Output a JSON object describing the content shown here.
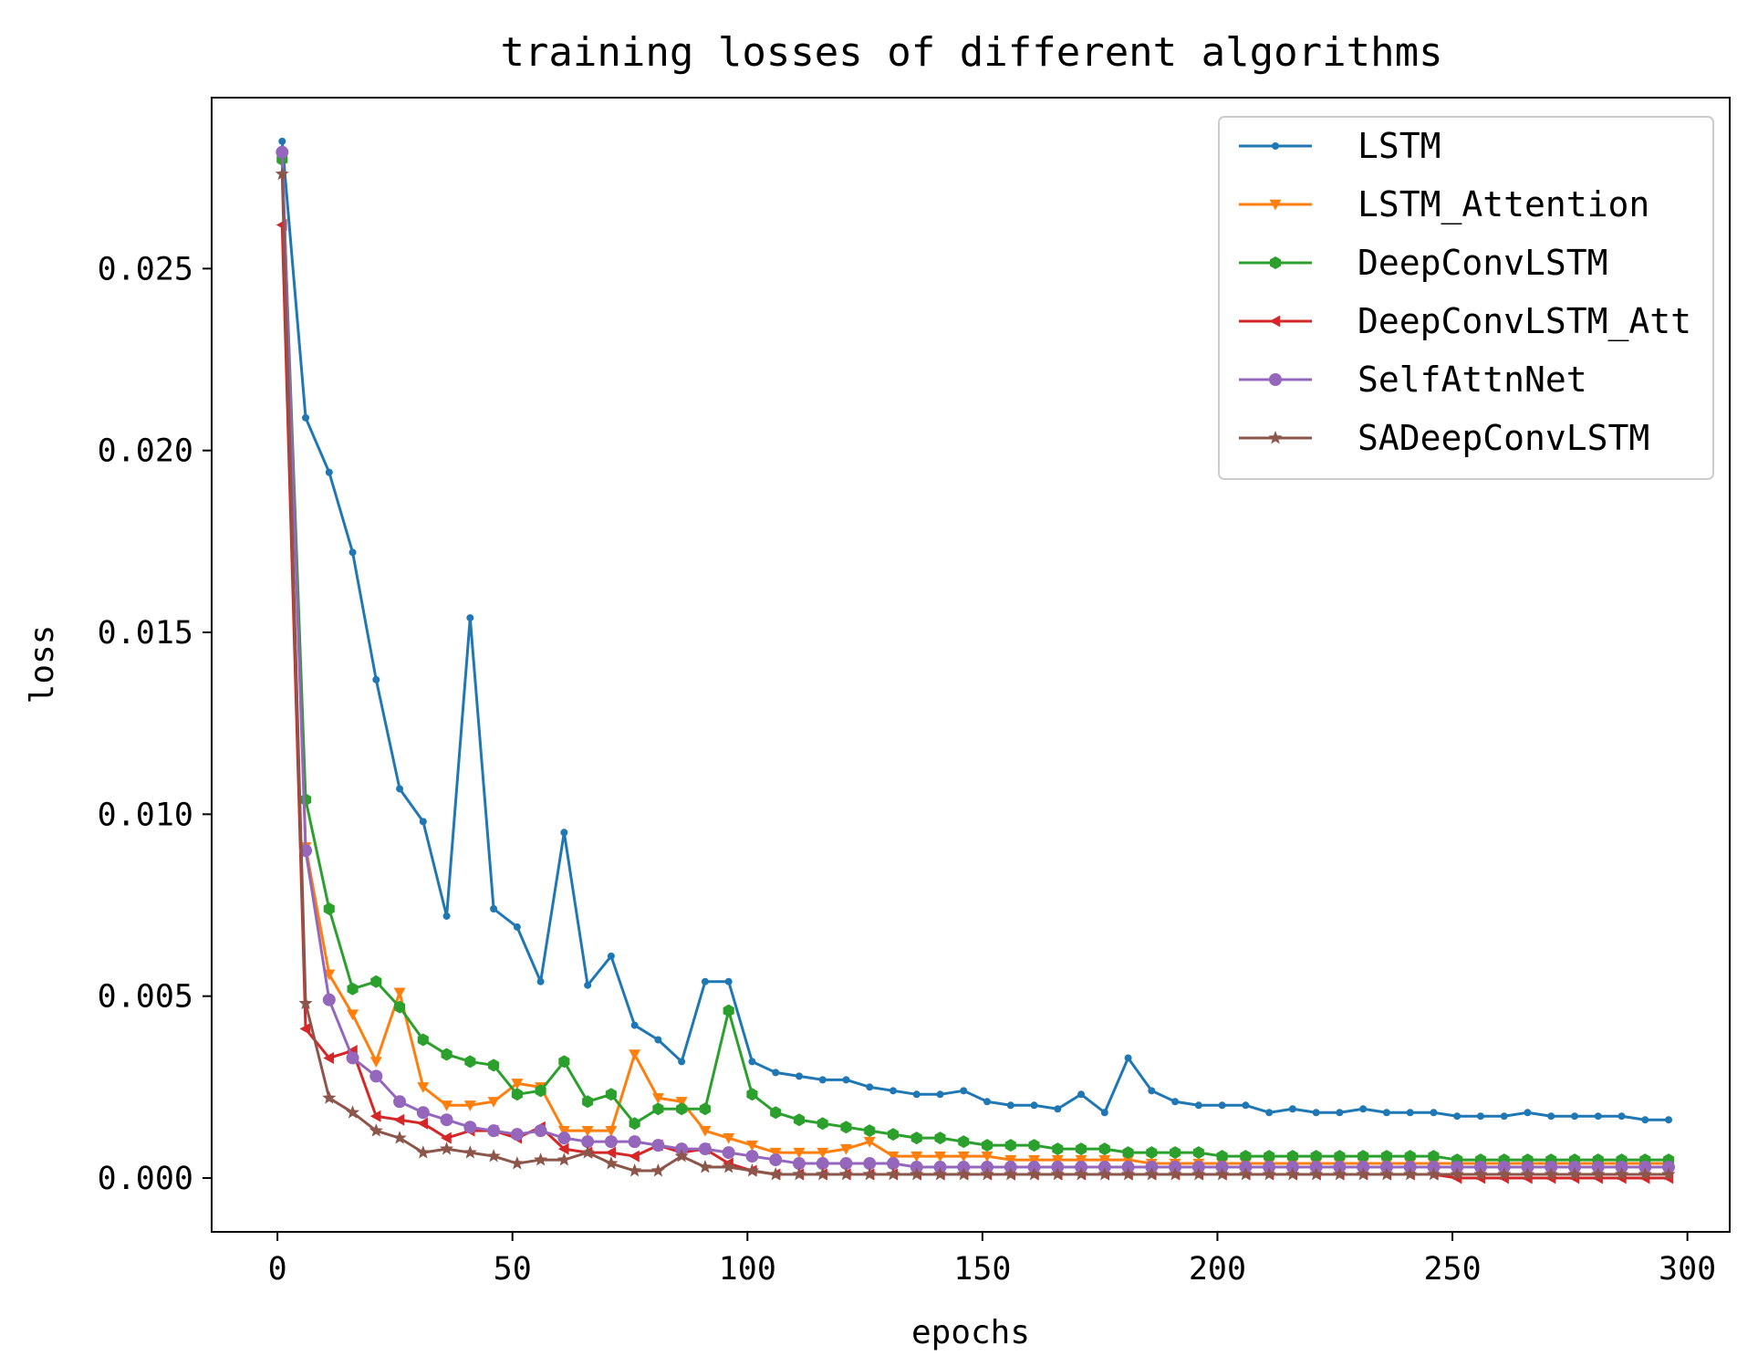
{
  "chart_data": {
    "type": "line",
    "title": "training losses of different algorithms",
    "xlabel": "epochs",
    "ylabel": "loss",
    "xlim": [
      -14,
      309
    ],
    "ylim": [
      -0.00148,
      0.0297
    ],
    "xticks": [
      0,
      50,
      100,
      150,
      200,
      250,
      300
    ],
    "xtick_labels": [
      "0",
      "50",
      "100",
      "150",
      "200",
      "250",
      "300"
    ],
    "yticks": [
      0.0,
      0.005,
      0.01,
      0.015,
      0.02,
      0.025
    ],
    "ytick_labels": [
      "0.000",
      "0.005",
      "0.010",
      "0.015",
      "0.020",
      "0.025"
    ],
    "legend_position": "top-right",
    "grid": false,
    "x": [
      1,
      6,
      11,
      16,
      21,
      26,
      31,
      36,
      41,
      46,
      51,
      56,
      61,
      66,
      71,
      76,
      81,
      86,
      91,
      96,
      101,
      106,
      111,
      116,
      121,
      126,
      131,
      136,
      141,
      146,
      151,
      156,
      161,
      166,
      171,
      176,
      181,
      186,
      191,
      196,
      201,
      206,
      211,
      216,
      221,
      226,
      231,
      236,
      241,
      246,
      251,
      256,
      261,
      266,
      271,
      276,
      281,
      286,
      291,
      296
    ],
    "series": [
      {
        "name": "LSTM",
        "color": "#1f77b4",
        "marker": "point",
        "values": [
          0.0285,
          0.0209,
          0.0194,
          0.0172,
          0.0137,
          0.0107,
          0.0098,
          0.0072,
          0.0154,
          0.0074,
          0.0069,
          0.0054,
          0.0095,
          0.0053,
          0.0061,
          0.0042,
          0.0038,
          0.0032,
          0.0054,
          0.0054,
          0.0032,
          0.0029,
          0.0028,
          0.0027,
          0.0027,
          0.0025,
          0.0024,
          0.0023,
          0.0023,
          0.0024,
          0.0021,
          0.002,
          0.002,
          0.0019,
          0.0023,
          0.0018,
          0.0033,
          0.0024,
          0.0021,
          0.002,
          0.002,
          0.002,
          0.0018,
          0.0019,
          0.0018,
          0.0018,
          0.0019,
          0.0018,
          0.0018,
          0.0018,
          0.0017,
          0.0017,
          0.0017,
          0.0018,
          0.0017,
          0.0017,
          0.0017,
          0.0017,
          0.0016,
          0.0016
        ]
      },
      {
        "name": "LSTM_Attention",
        "color": "#ff7f0e",
        "marker": "triangle_down",
        "values": [
          0.0281,
          0.0091,
          0.0056,
          0.0045,
          0.0032,
          0.0051,
          0.0025,
          0.002,
          0.002,
          0.0021,
          0.0026,
          0.0025,
          0.0013,
          0.0013,
          0.0013,
          0.0034,
          0.0022,
          0.0021,
          0.0013,
          0.0011,
          0.0009,
          0.0007,
          0.0007,
          0.0007,
          0.0008,
          0.001,
          0.0006,
          0.0006,
          0.0006,
          0.0006,
          0.0006,
          0.0005,
          0.0005,
          0.0005,
          0.0005,
          0.0005,
          0.0005,
          0.0004,
          0.0004,
          0.0004,
          0.0004,
          0.0004,
          0.0004,
          0.0004,
          0.0004,
          0.0004,
          0.0004,
          0.0004,
          0.0004,
          0.0004,
          0.0004,
          0.0004,
          0.0004,
          0.0004,
          0.0004,
          0.0004,
          0.0004,
          0.0004,
          0.0004,
          0.0004
        ]
      },
      {
        "name": "DeepConvLSTM",
        "color": "#2ca02c",
        "marker": "hexagon",
        "values": [
          0.028,
          0.0104,
          0.0074,
          0.0052,
          0.0054,
          0.0047,
          0.0038,
          0.0034,
          0.0032,
          0.0031,
          0.0023,
          0.0024,
          0.0032,
          0.0021,
          0.0023,
          0.0015,
          0.0019,
          0.0019,
          0.0019,
          0.0046,
          0.0023,
          0.0018,
          0.0016,
          0.0015,
          0.0014,
          0.0013,
          0.0012,
          0.0011,
          0.0011,
          0.001,
          0.0009,
          0.0009,
          0.0009,
          0.0008,
          0.0008,
          0.0008,
          0.0007,
          0.0007,
          0.0007,
          0.0007,
          0.0006,
          0.0006,
          0.0006,
          0.0006,
          0.0006,
          0.0006,
          0.0006,
          0.0006,
          0.0006,
          0.0006,
          0.0005,
          0.0005,
          0.0005,
          0.0005,
          0.0005,
          0.0005,
          0.0005,
          0.0005,
          0.0005,
          0.0005
        ]
      },
      {
        "name": "DeepConvLSTM_Att",
        "color": "#d62728",
        "marker": "triangle_left",
        "values": [
          0.0262,
          0.0041,
          0.0033,
          0.0035,
          0.0017,
          0.0016,
          0.0015,
          0.0011,
          0.0013,
          0.0013,
          0.0011,
          0.0014,
          0.0008,
          0.0007,
          0.0007,
          0.0006,
          0.0009,
          0.0007,
          0.0008,
          0.0004,
          0.0002,
          0.0001,
          0.0001,
          0.0001,
          0.0001,
          0.0001,
          0.0001,
          0.0001,
          0.0001,
          0.0001,
          0.0001,
          0.0001,
          0.0001,
          0.0001,
          0.0001,
          0.0001,
          0.0001,
          0.0001,
          0.0001,
          0.0001,
          0.0001,
          0.0001,
          0.0001,
          0.0001,
          0.0001,
          0.0001,
          0.0001,
          0.0001,
          0.0001,
          0.0001,
          0.0,
          0.0,
          0.0,
          0.0,
          0.0,
          0.0,
          0.0,
          0.0,
          0.0,
          0.0
        ]
      },
      {
        "name": "SelfAttnNet",
        "color": "#9467bd",
        "marker": "circle",
        "values": [
          0.0282,
          0.009,
          0.0049,
          0.0033,
          0.0028,
          0.0021,
          0.0018,
          0.0016,
          0.0014,
          0.0013,
          0.0012,
          0.0013,
          0.0011,
          0.001,
          0.001,
          0.001,
          0.0009,
          0.0008,
          0.0008,
          0.0007,
          0.0006,
          0.0005,
          0.0004,
          0.0004,
          0.0004,
          0.0004,
          0.0004,
          0.0003,
          0.0003,
          0.0003,
          0.0003,
          0.0003,
          0.0003,
          0.0003,
          0.0003,
          0.0003,
          0.0003,
          0.0003,
          0.0003,
          0.0003,
          0.0003,
          0.0003,
          0.0003,
          0.0003,
          0.0003,
          0.0003,
          0.0003,
          0.0003,
          0.0003,
          0.0003,
          0.0003,
          0.0003,
          0.0003,
          0.0003,
          0.0003,
          0.0003,
          0.0003,
          0.0003,
          0.0003,
          0.0003
        ]
      },
      {
        "name": "SADeepConvLSTM",
        "color": "#8c564b",
        "marker": "star",
        "values": [
          0.0276,
          0.0048,
          0.0022,
          0.0018,
          0.0013,
          0.0011,
          0.0007,
          0.0008,
          0.0007,
          0.0006,
          0.0004,
          0.0005,
          0.0005,
          0.0007,
          0.0004,
          0.0002,
          0.0002,
          0.0006,
          0.0003,
          0.0003,
          0.0002,
          0.0001,
          0.0001,
          0.0001,
          0.0001,
          0.0001,
          0.0001,
          0.0001,
          0.0001,
          0.0001,
          0.0001,
          0.0001,
          0.0001,
          0.0001,
          0.0001,
          0.0001,
          0.0001,
          0.0001,
          0.0001,
          0.0001,
          0.0001,
          0.0001,
          0.0001,
          0.0001,
          0.0001,
          0.0001,
          0.0001,
          0.0001,
          0.0001,
          0.0001,
          0.0001,
          0.0001,
          0.0001,
          0.0001,
          0.0001,
          0.0001,
          0.0001,
          0.0001,
          0.0001,
          0.0001
        ]
      }
    ]
  }
}
